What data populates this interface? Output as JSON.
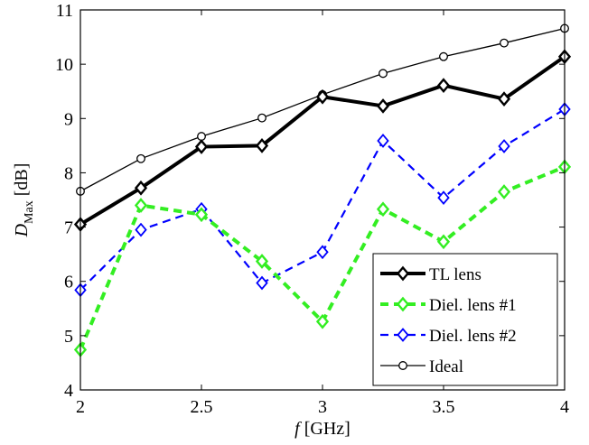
{
  "chart_data": {
    "type": "line",
    "x": [
      2,
      2.25,
      2.5,
      2.75,
      3,
      3.25,
      3.5,
      3.75,
      4
    ],
    "xlim": [
      2,
      4
    ],
    "ylim": [
      4,
      11
    ],
    "xticks": [
      2,
      2.5,
      3,
      3.5,
      4
    ],
    "xtick_labels": [
      "2",
      "2.5",
      "3",
      "3.5",
      "4"
    ],
    "yticks": [
      4,
      5,
      6,
      7,
      8,
      9,
      10,
      11
    ],
    "ytick_labels": [
      "4",
      "5",
      "6",
      "7",
      "8",
      "9",
      "10",
      "11"
    ],
    "xlabel": {
      "italic": "f",
      "rest": " [GHz]"
    },
    "ylabel": {
      "italic": "D",
      "sub": "Max",
      "rest": " [dB]"
    },
    "grid": false,
    "legend_position": "bottom-right",
    "series": [
      {
        "name": "TL lens",
        "color": "#000000",
        "dash": "solid",
        "width": "thick",
        "marker": "diamond",
        "values": [
          7.05,
          7.72,
          8.48,
          8.5,
          9.4,
          9.23,
          9.61,
          9.36,
          10.14
        ]
      },
      {
        "name": "Diel. lens #1",
        "color": "#33ee22",
        "dash": "dashed",
        "width": "thick",
        "marker": "diamond",
        "values": [
          4.74,
          7.4,
          7.23,
          6.37,
          5.26,
          7.33,
          6.73,
          7.65,
          8.11
        ]
      },
      {
        "name": "Diel. lens #2",
        "color": "#0000ff",
        "dash": "dashed",
        "width": "normal",
        "marker": "diamond",
        "values": [
          5.84,
          6.95,
          7.33,
          5.97,
          6.54,
          8.59,
          7.54,
          8.49,
          9.17
        ]
      },
      {
        "name": "Ideal",
        "color": "#000000",
        "dash": "solid",
        "width": "thin",
        "marker": "circle",
        "values": [
          7.66,
          8.26,
          8.67,
          9.01,
          9.44,
          9.83,
          10.14,
          10.39,
          10.66
        ]
      }
    ]
  }
}
